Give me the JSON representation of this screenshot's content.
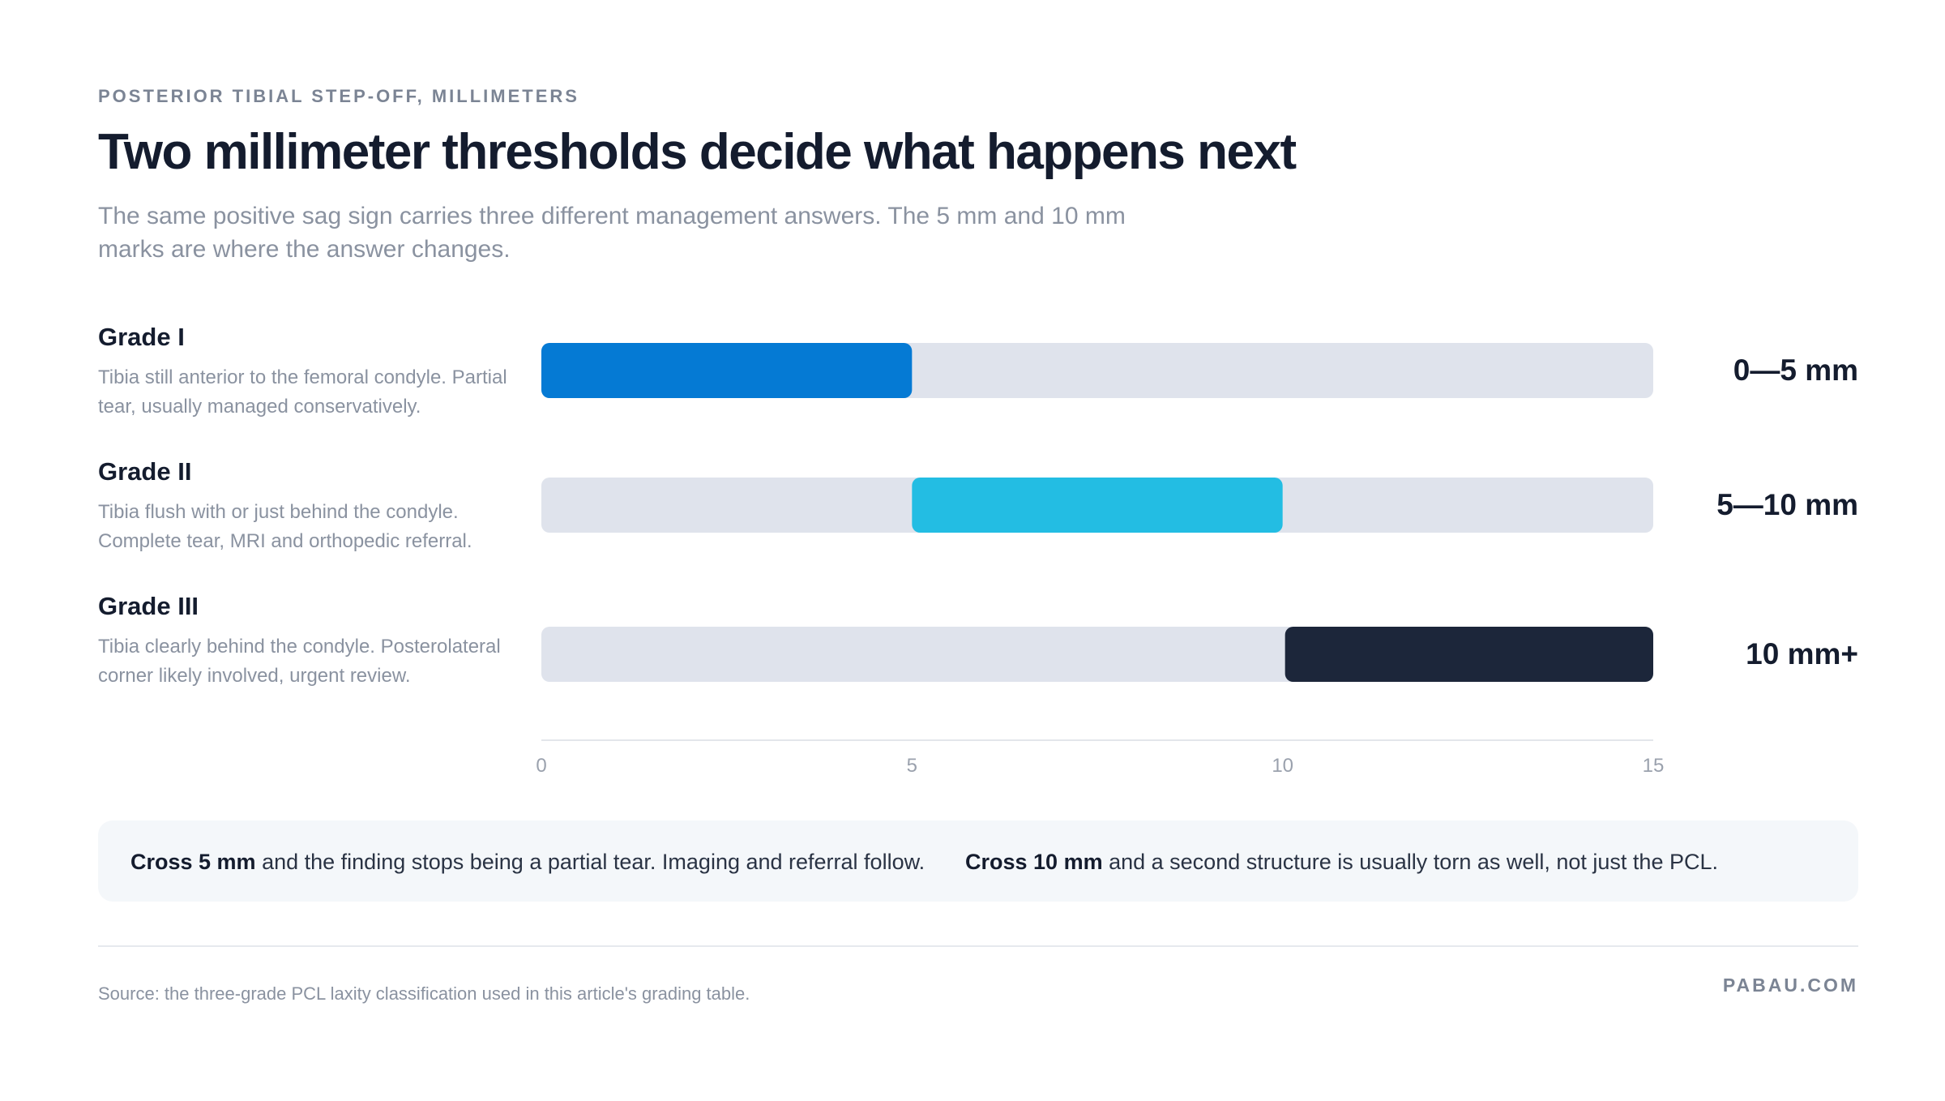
{
  "header": {
    "eyebrow": "POSTERIOR TIBIAL STEP-OFF, MILLIMETERS",
    "title": "Two millimeter thresholds decide what happens next",
    "subtitle": "The same positive sag sign carries three different management answers. The 5 mm and 10 mm marks are where the answer changes."
  },
  "chart_data": {
    "type": "bar",
    "orientation": "horizontal-range",
    "xlim": [
      0,
      15
    ],
    "xticks": [
      0,
      5,
      10,
      15
    ],
    "grid": false,
    "series": [
      {
        "name": "Grade I",
        "description": "Tibia still anterior to the femoral condyle. Partial tear, usually managed conservatively.",
        "start": 0,
        "end": 5,
        "range_label": "0—5 mm",
        "color": "#057ad4"
      },
      {
        "name": "Grade II",
        "description": "Tibia flush with or just behind the condyle. Complete tear, MRI and orthopedic referral.",
        "start": 5,
        "end": 10,
        "range_label": "5—10 mm",
        "color": "#23bde3"
      },
      {
        "name": "Grade III",
        "description": "Tibia clearly behind the condyle. Posterolateral corner likely involved, urgent review.",
        "start": 10,
        "end": 15,
        "range_label": "10 mm+",
        "color": "#1c263a"
      }
    ],
    "track_color": "#dfe3ec"
  },
  "callout": {
    "left_bold": "Cross 5 mm",
    "left_text": " and the finding stops being a partial tear. Imaging and referral follow.",
    "right_bold": "Cross 10 mm",
    "right_text": " and a second structure is usually torn as well, not just the PCL."
  },
  "footer": {
    "source": "Source: the three-grade PCL laxity classification used in this article's grading table.",
    "brand": "PABAU.COM"
  }
}
